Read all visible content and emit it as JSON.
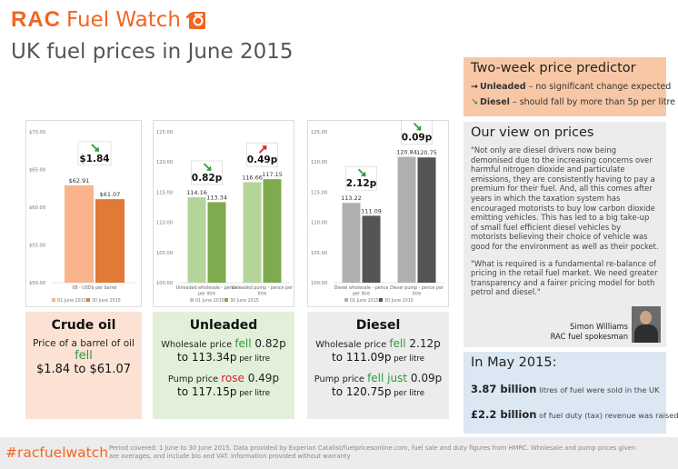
{
  "header": {
    "logo_rac": "RAC",
    "logo_fuel_watch": "Fuel Watch",
    "page_title": "UK fuel prices in June 2015"
  },
  "predictor": {
    "title": "Two-week price predictor",
    "rows": [
      {
        "arrow": "→",
        "label": "Unleaded",
        "text": "– no significant change expected"
      },
      {
        "arrow": "↘",
        "label": "Diesel",
        "text": "– should fall by more than 5p per litre"
      }
    ]
  },
  "view": {
    "title": "Our view on prices",
    "paragraphs": [
      "\"Not only are diesel drivers now being demonised due to the increasing concerns over harmful nitrogen dioxide and particulate emissions, they are consistently having to pay a premium for their fuel. And, all this comes after years in which the taxation system has encouraged motorists to buy low carbon dioxide emitting vehicles. This has led to a big take-up of small fuel efficient diesel vehicles by motorists believing their choice of vehicle was good for the environment as well as their pocket.",
      "\"What is required is a fundamental re-balance of pricing in the retail fuel market. We need greater transparency and a fairer pricing model for both petrol and diesel.\""
    ],
    "signature_name": "Simon Williams",
    "signature_role": "RAC fuel spokesman"
  },
  "may": {
    "title": "In May 2015:",
    "rows": [
      {
        "bold": "3.87 billion",
        "text": " litres of fuel were sold in the UK"
      },
      {
        "bold": "£2.2 billion",
        "text": " of fuel duty (tax) revenue was raised"
      }
    ]
  },
  "cards": {
    "crude": {
      "title": "Crude oil",
      "l1_pre": "Price of a barrel of oil ",
      "l1_em": "fell",
      "l2": "$1.84 to $61.07"
    },
    "unleaded": {
      "title": "Unleaded",
      "l1_pre": "Wholesale price ",
      "l1_em": "fell",
      "l1_post": " 0.82p",
      "l2_pre": "to 113.34p",
      "l2_small": " per litre",
      "l3_pre": "Pump price ",
      "l3_em": "rose",
      "l3_post": " 0.49p",
      "l4_pre": "to 117.15p",
      "l4_small": " per litre"
    },
    "diesel": {
      "title": "Diesel",
      "l1_pre": "Wholesale price ",
      "l1_em": "fell",
      "l1_post": " 2.12p",
      "l2_pre": "to 111.09p",
      "l2_small": " per litre",
      "l3_pre": "Pump price ",
      "l3_em": "fell just",
      "l3_post": " 0.09p",
      "l4_pre": "to 120.75p",
      "l4_small": " per litre"
    }
  },
  "footer": {
    "hashtag": "#racfuelwatch",
    "note": "Period covered: 1 June to 30 June 2015. Data provided by Experian Catalist/fuelpricesonline.com, fuel sale and duty figures from HMRC. Wholesale and pump prices given are averages, and include bio and VAT. Information provided without warranty"
  },
  "colors": {
    "brand_orange": "#f26522",
    "crude_light": "#f9b48c",
    "crude_dark": "#e07a36",
    "unl_light": "#b5d49a",
    "unl_dark": "#7fab4e",
    "dsl_light": "#b0b0b0",
    "dsl_dark": "#555555",
    "arrow_down": "#2e9b3e",
    "arrow_up": "#d8232a"
  },
  "chart_data": [
    {
      "type": "bar",
      "categories": [
        "08 - USD$ per barrel"
      ],
      "series": [
        {
          "name": "01 June 2015",
          "values": [
            62.91
          ]
        },
        {
          "name": "30 June 2015",
          "values": [
            61.07
          ]
        }
      ],
      "value_labels": [
        "$62.91",
        "$61.07"
      ],
      "y_ticks": [
        "$70.00",
        "$65.00",
        "$60.00",
        "$55.00",
        "$50.00"
      ],
      "ylim": [
        50,
        70
      ],
      "annotation": "$1.84",
      "annotation_direction": "down",
      "legend": "bottom"
    },
    {
      "type": "bar",
      "categories": [
        "Unleaded wholesale - pence per litre",
        "Unleaded pump - pence per litre"
      ],
      "series": [
        {
          "name": "01 June 2015",
          "values": [
            114.16,
            116.66
          ]
        },
        {
          "name": "30 June 2015",
          "values": [
            113.34,
            117.15
          ]
        }
      ],
      "value_labels": [
        [
          "114.16",
          "116.66"
        ],
        [
          "113.34",
          "117.15"
        ]
      ],
      "y_ticks": [
        "125.00",
        "120.00",
        "115.00",
        "110.00",
        "105.00",
        "100.00"
      ],
      "ylim": [
        100,
        125
      ],
      "annotations": [
        {
          "text": "0.82p",
          "direction": "down"
        },
        {
          "text": "0.49p",
          "direction": "up"
        }
      ],
      "legend": "bottom"
    },
    {
      "type": "bar",
      "categories": [
        "Diesel wholesale - pence per litre",
        "Diesel pump - pence per litre"
      ],
      "series": [
        {
          "name": "01 June 2015",
          "values": [
            113.22,
            120.84
          ]
        },
        {
          "name": "30 June 2015",
          "values": [
            111.09,
            120.75
          ]
        }
      ],
      "value_labels": [
        [
          "113.22",
          "120.84"
        ],
        [
          "111.09",
          "120.75"
        ]
      ],
      "y_ticks": [
        "125.00",
        "120.00",
        "115.00",
        "110.00",
        "105.00",
        "100.00"
      ],
      "ylim": [
        100,
        125
      ],
      "annotations": [
        {
          "text": "2.12p",
          "direction": "down"
        },
        {
          "text": "0.09p",
          "direction": "down"
        }
      ],
      "legend": "bottom"
    }
  ]
}
